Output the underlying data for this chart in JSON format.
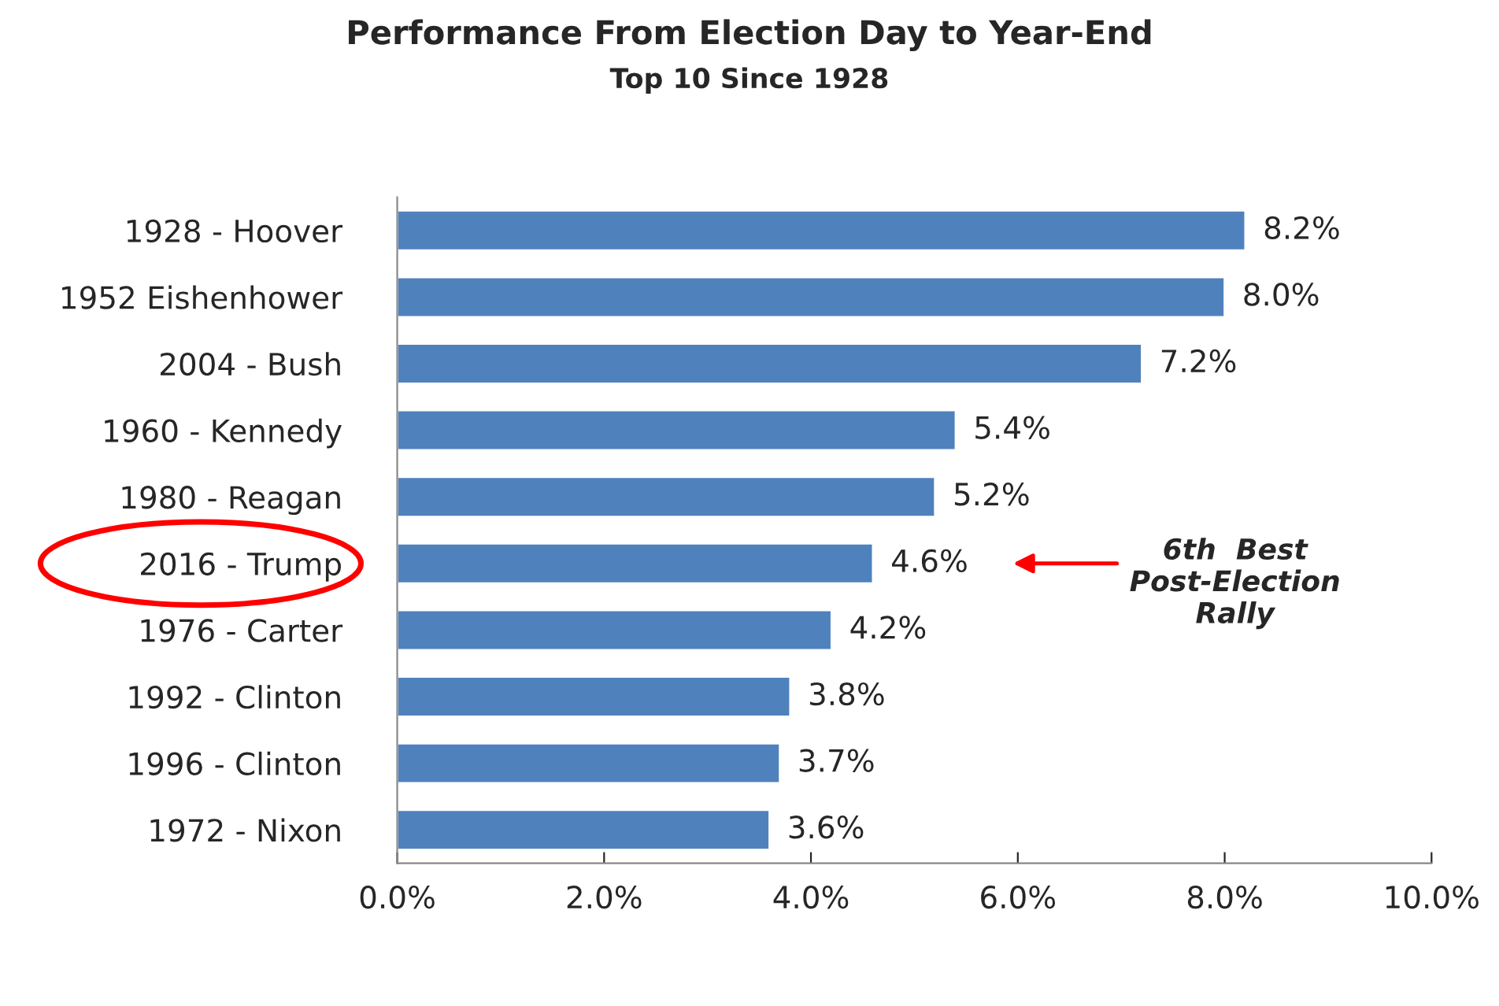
{
  "chart_data": {
    "type": "bar",
    "orientation": "horizontal",
    "title": "Performance From Election Day to Year-End",
    "subtitle": "Top 10 Since 1928",
    "categories": [
      "1928 - Hoover",
      "1952 Eishenhower",
      "2004 - Bush",
      "1960 - Kennedy",
      "1980 - Reagan",
      "2016 - Trump",
      "1976 - Carter",
      "1992 - Clinton",
      "1996 - Clinton",
      "1972 - Nixon"
    ],
    "values": [
      8.2,
      8.0,
      7.2,
      5.4,
      5.2,
      4.6,
      4.2,
      3.8,
      3.7,
      3.6
    ],
    "value_labels": [
      "8.2%",
      "8.0%",
      "7.2%",
      "5.4%",
      "5.2%",
      "4.6%",
      "4.2%",
      "3.8%",
      "3.7%",
      "3.6%"
    ],
    "color": "#4f81bd",
    "xlim": [
      0,
      10
    ],
    "xticks": [
      {
        "value": 0,
        "label": "0.0%"
      },
      {
        "value": 2,
        "label": "2.0%"
      },
      {
        "value": 4,
        "label": "4.0%"
      },
      {
        "value": 6,
        "label": "6.0%"
      },
      {
        "value": 8,
        "label": "8.0%"
      },
      {
        "value": 10,
        "label": "10.0%"
      }
    ],
    "grid": false,
    "legend": false,
    "annotations": [
      "6th  Best\nPost-Election\nRally"
    ]
  }
}
